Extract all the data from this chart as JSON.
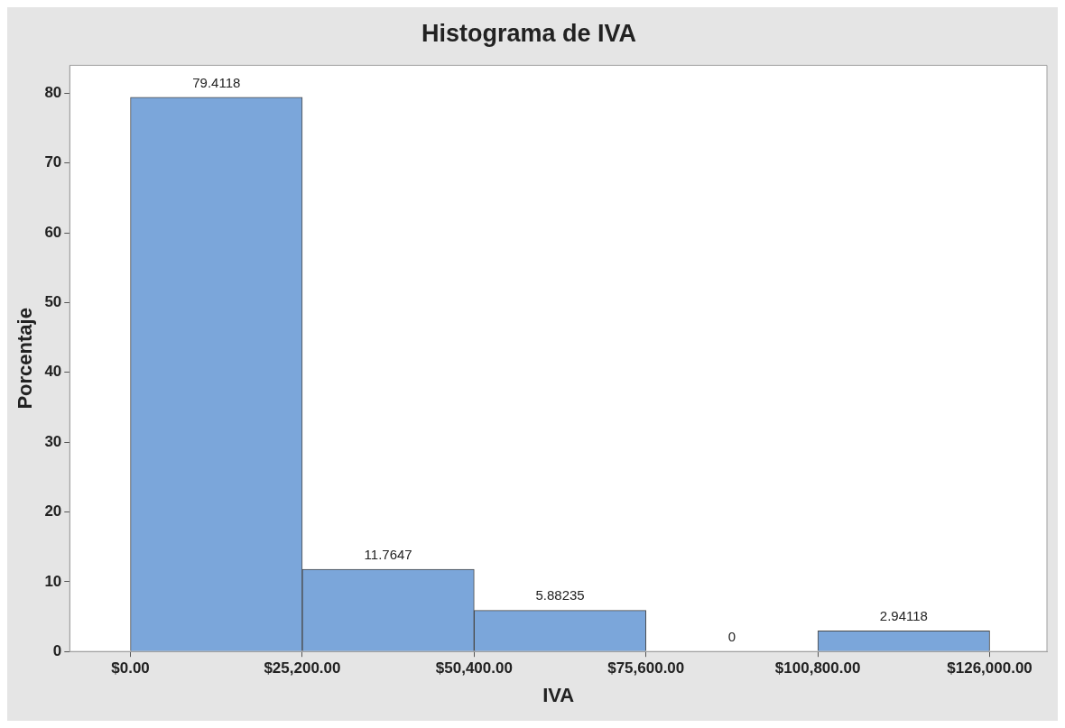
{
  "chart_data": {
    "type": "histogram",
    "title": "Histograma de IVA",
    "xlabel": "IVA",
    "ylabel": "Porcentaje",
    "bins": [
      0,
      25200,
      50400,
      75600,
      100800,
      126000
    ],
    "values": [
      79.4118,
      11.7647,
      5.88235,
      0,
      2.94118
    ],
    "color": "#7ba6da",
    "xlim": [
      -8900,
      134400
    ],
    "xticks": [
      {
        "value": 0,
        "label": "$0.00"
      },
      {
        "value": 25200,
        "label": "$25,200.00"
      },
      {
        "value": 50400,
        "label": "$50,400.00"
      },
      {
        "value": 75600,
        "label": "$75,600.00"
      },
      {
        "value": 100800,
        "label": "$100,800.00"
      },
      {
        "value": 126000,
        "label": "$126,000.00"
      }
    ],
    "ylim": [
      0,
      84
    ],
    "yticks": [
      0,
      10,
      20,
      30,
      40,
      50,
      60,
      70,
      80
    ],
    "data_labels": true
  }
}
